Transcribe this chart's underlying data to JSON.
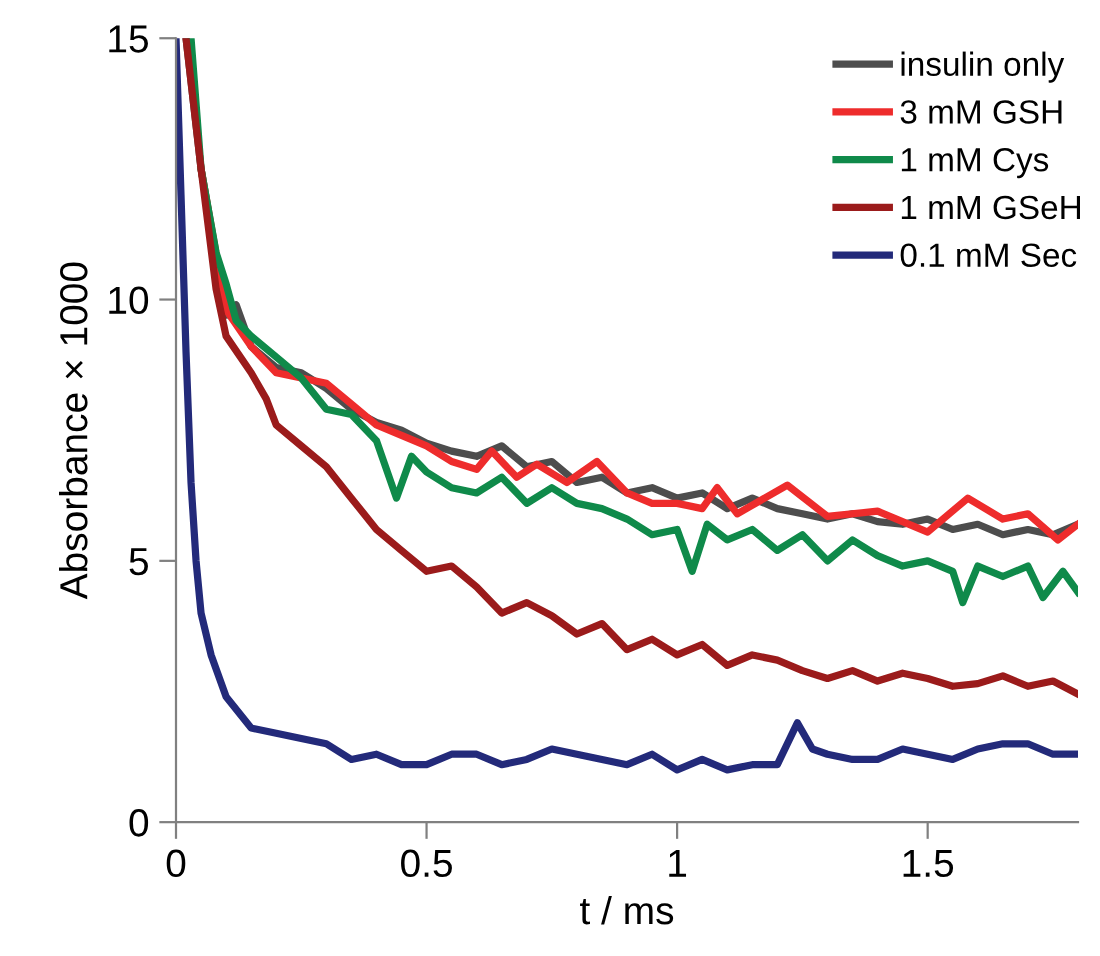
{
  "chart_data": {
    "type": "line",
    "xlabel": "t / ms",
    "ylabel": "Absorbance × 1000",
    "xlim": [
      0,
      1.8
    ],
    "xticks": [
      0,
      0.5,
      1,
      1.5
    ],
    "ylim": [
      0,
      15
    ],
    "yticks": [
      0,
      5,
      10,
      15
    ],
    "grid": false,
    "legend": "top right",
    "marker": "none",
    "line_style": "solid",
    "series": [
      {
        "name": "insulin only",
        "color": "#4d4d4d",
        "x": [
          0.02,
          0.05,
          0.1,
          0.12,
          0.15,
          0.2,
          0.25,
          0.3,
          0.35,
          0.4,
          0.45,
          0.5,
          0.55,
          0.6,
          0.65,
          0.7,
          0.75,
          0.8,
          0.85,
          0.9,
          0.95,
          1.0,
          1.05,
          1.1,
          1.15,
          1.2,
          1.25,
          1.3,
          1.35,
          1.4,
          1.45,
          1.5,
          1.55,
          1.6,
          1.65,
          1.7,
          1.75,
          1.8
        ],
        "values": [
          15,
          12.5,
          9.7,
          9.9,
          9.1,
          8.7,
          8.6,
          8.3,
          7.9,
          7.65,
          7.5,
          7.25,
          7.1,
          7.0,
          7.2,
          6.8,
          6.9,
          6.5,
          6.6,
          6.3,
          6.4,
          6.2,
          6.3,
          6.0,
          6.2,
          6.0,
          5.9,
          5.8,
          5.9,
          5.75,
          5.7,
          5.8,
          5.6,
          5.7,
          5.5,
          5.6,
          5.5,
          5.7
        ]
      },
      {
        "name": "3 mM GSH",
        "color": "#ee2c2c",
        "x": [
          0.05,
          0.1,
          0.15,
          0.2,
          0.25,
          0.3,
          0.35,
          0.4,
          0.45,
          0.5,
          0.55,
          0.6,
          0.63,
          0.68,
          0.72,
          0.78,
          0.84,
          0.9,
          0.95,
          1.0,
          1.05,
          1.08,
          1.12,
          1.22,
          1.3,
          1.4,
          1.5,
          1.58,
          1.65,
          1.7,
          1.76,
          1.8
        ],
        "values": [
          12.5,
          9.8,
          9.1,
          8.6,
          8.5,
          8.4,
          8.0,
          7.6,
          7.4,
          7.2,
          6.9,
          6.75,
          7.1,
          6.6,
          6.85,
          6.5,
          6.9,
          6.3,
          6.1,
          6.1,
          6.0,
          6.4,
          5.9,
          6.45,
          5.85,
          5.95,
          5.55,
          6.2,
          5.8,
          5.9,
          5.4,
          5.7
        ]
      },
      {
        "name": "1 mM Cys",
        "color": "#0f8a4a",
        "x": [
          0.03,
          0.05,
          0.08,
          0.1,
          0.12,
          0.15,
          0.2,
          0.25,
          0.3,
          0.35,
          0.4,
          0.44,
          0.47,
          0.5,
          0.55,
          0.6,
          0.65,
          0.7,
          0.75,
          0.8,
          0.85,
          0.9,
          0.95,
          1.0,
          1.03,
          1.06,
          1.1,
          1.15,
          1.2,
          1.25,
          1.3,
          1.35,
          1.4,
          1.45,
          1.5,
          1.55,
          1.57,
          1.6,
          1.65,
          1.7,
          1.73,
          1.77,
          1.8
        ],
        "values": [
          15,
          12.5,
          10.9,
          10.3,
          9.6,
          9.3,
          8.9,
          8.5,
          7.9,
          7.8,
          7.3,
          6.2,
          7.0,
          6.7,
          6.4,
          6.3,
          6.6,
          6.1,
          6.4,
          6.1,
          6.0,
          5.8,
          5.5,
          5.6,
          4.8,
          5.7,
          5.4,
          5.6,
          5.2,
          5.5,
          5.0,
          5.4,
          5.1,
          4.9,
          5.0,
          4.8,
          4.2,
          4.9,
          4.7,
          4.9,
          4.3,
          4.8,
          4.4
        ]
      },
      {
        "name": "1 mM GSeH",
        "color": "#9b1b1b",
        "x": [
          0.02,
          0.05,
          0.08,
          0.1,
          0.15,
          0.18,
          0.2,
          0.25,
          0.3,
          0.35,
          0.4,
          0.45,
          0.5,
          0.55,
          0.6,
          0.65,
          0.7,
          0.75,
          0.8,
          0.85,
          0.9,
          0.95,
          1.0,
          1.05,
          1.1,
          1.15,
          1.2,
          1.25,
          1.3,
          1.35,
          1.4,
          1.45,
          1.5,
          1.55,
          1.6,
          1.65,
          1.7,
          1.75,
          1.8
        ],
        "values": [
          15,
          12.5,
          10.2,
          9.3,
          8.6,
          8.1,
          7.6,
          7.2,
          6.8,
          6.2,
          5.6,
          5.2,
          4.8,
          4.9,
          4.5,
          4.0,
          4.2,
          3.95,
          3.6,
          3.8,
          3.3,
          3.5,
          3.2,
          3.4,
          3.0,
          3.2,
          3.1,
          2.9,
          2.75,
          2.9,
          2.7,
          2.85,
          2.75,
          2.6,
          2.65,
          2.8,
          2.6,
          2.7,
          2.45
        ]
      },
      {
        "name": "0.1 mM Sec",
        "color": "#232a7a",
        "x": [
          0.0,
          0.01,
          0.015,
          0.02,
          0.03,
          0.04,
          0.05,
          0.07,
          0.1,
          0.15,
          0.2,
          0.25,
          0.3,
          0.35,
          0.4,
          0.45,
          0.5,
          0.55,
          0.6,
          0.65,
          0.7,
          0.75,
          0.8,
          0.85,
          0.9,
          0.95,
          1.0,
          1.05,
          1.1,
          1.15,
          1.2,
          1.24,
          1.27,
          1.3,
          1.35,
          1.4,
          1.45,
          1.5,
          1.55,
          1.6,
          1.65,
          1.7,
          1.75,
          1.8
        ],
        "values": [
          15,
          12,
          10.5,
          9,
          6.5,
          5,
          4.0,
          3.2,
          2.4,
          1.8,
          1.7,
          1.6,
          1.5,
          1.2,
          1.3,
          1.1,
          1.1,
          1.3,
          1.3,
          1.1,
          1.2,
          1.4,
          1.3,
          1.2,
          1.1,
          1.3,
          1.0,
          1.2,
          1.0,
          1.1,
          1.1,
          1.9,
          1.4,
          1.3,
          1.2,
          1.2,
          1.4,
          1.3,
          1.2,
          1.4,
          1.5,
          1.5,
          1.3,
          1.3
        ]
      }
    ]
  }
}
